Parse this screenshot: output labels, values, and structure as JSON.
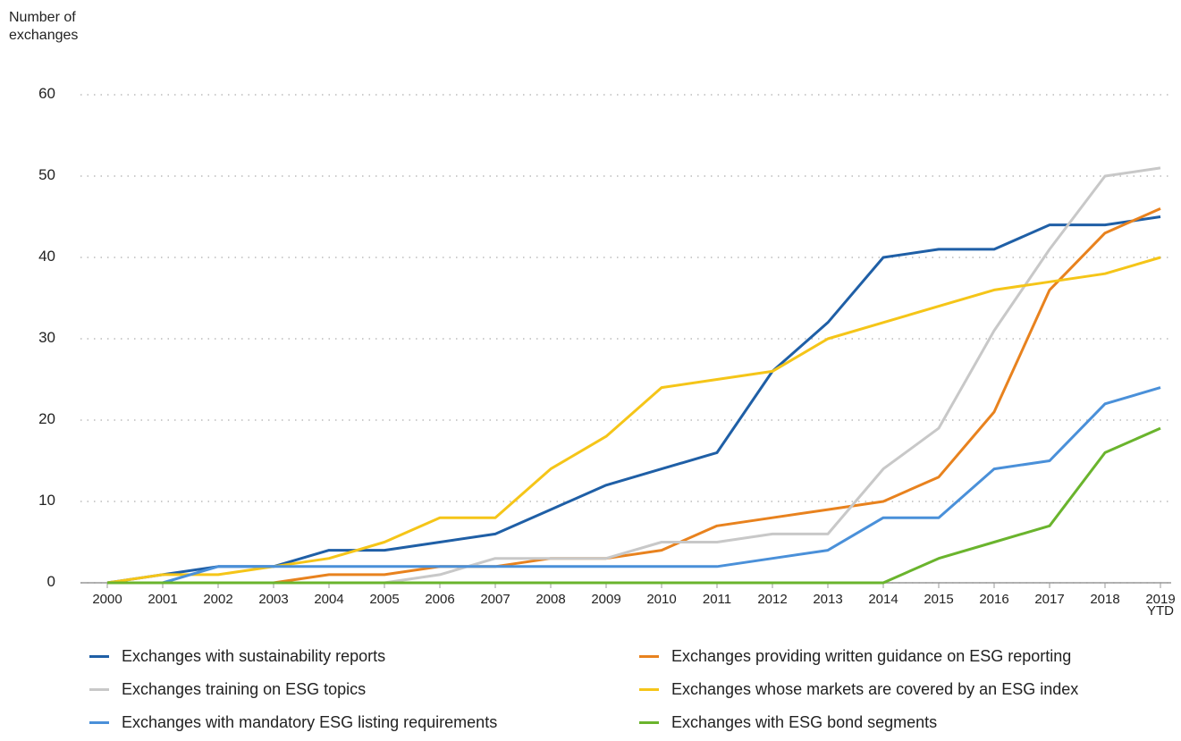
{
  "chart_data": {
    "type": "line",
    "y_axis_label": "Number of exchanges",
    "categories": [
      "2000",
      "2001",
      "2002",
      "2003",
      "2004",
      "2005",
      "2006",
      "2007",
      "2008",
      "2009",
      "2010",
      "2011",
      "2012",
      "2013",
      "2014",
      "2015",
      "2016",
      "2017",
      "2018",
      "2019 YTD"
    ],
    "series": [
      {
        "name": "Exchanges with sustainability reports",
        "color": "#1f5fa6",
        "values": [
          0,
          1,
          2,
          2,
          4,
          4,
          5,
          6,
          9,
          12,
          14,
          16,
          26,
          32,
          40,
          41,
          41,
          44,
          44,
          45
        ]
      },
      {
        "name": "Exchanges providing written guidance on ESG reporting",
        "color": "#e8821e",
        "values": [
          0,
          0,
          0,
          0,
          1,
          1,
          2,
          2,
          3,
          3,
          4,
          7,
          8,
          9,
          10,
          13,
          21,
          36,
          43,
          46
        ]
      },
      {
        "name": "Exchanges training on ESG topics",
        "color": "#c8c8c8",
        "values": [
          0,
          0,
          0,
          0,
          0,
          0,
          1,
          3,
          3,
          3,
          5,
          5,
          6,
          6,
          14,
          19,
          31,
          41,
          50,
          51
        ]
      },
      {
        "name": "Exchanges whose markets are covered by an ESG index",
        "color": "#f5c518",
        "values": [
          0,
          1,
          1,
          2,
          3,
          5,
          8,
          8,
          14,
          18,
          24,
          25,
          26,
          30,
          32,
          34,
          36,
          37,
          38,
          40
        ]
      },
      {
        "name": "Exchanges with mandatory ESG listing requirements",
        "color": "#4a90d9",
        "values": [
          0,
          0,
          2,
          2,
          2,
          2,
          2,
          2,
          2,
          2,
          2,
          2,
          3,
          4,
          8,
          8,
          14,
          15,
          22,
          24
        ]
      },
      {
        "name": "Exchanges with ESG bond segments",
        "color": "#6ab42d",
        "values": [
          0,
          0,
          0,
          0,
          0,
          0,
          0,
          0,
          0,
          0,
          0,
          0,
          0,
          0,
          0,
          3,
          5,
          7,
          16,
          19
        ]
      }
    ],
    "ylim": [
      0,
      60
    ],
    "yticks": [
      0,
      10,
      20,
      30,
      40,
      50,
      60
    ],
    "grid": true,
    "legend": "bottom"
  }
}
